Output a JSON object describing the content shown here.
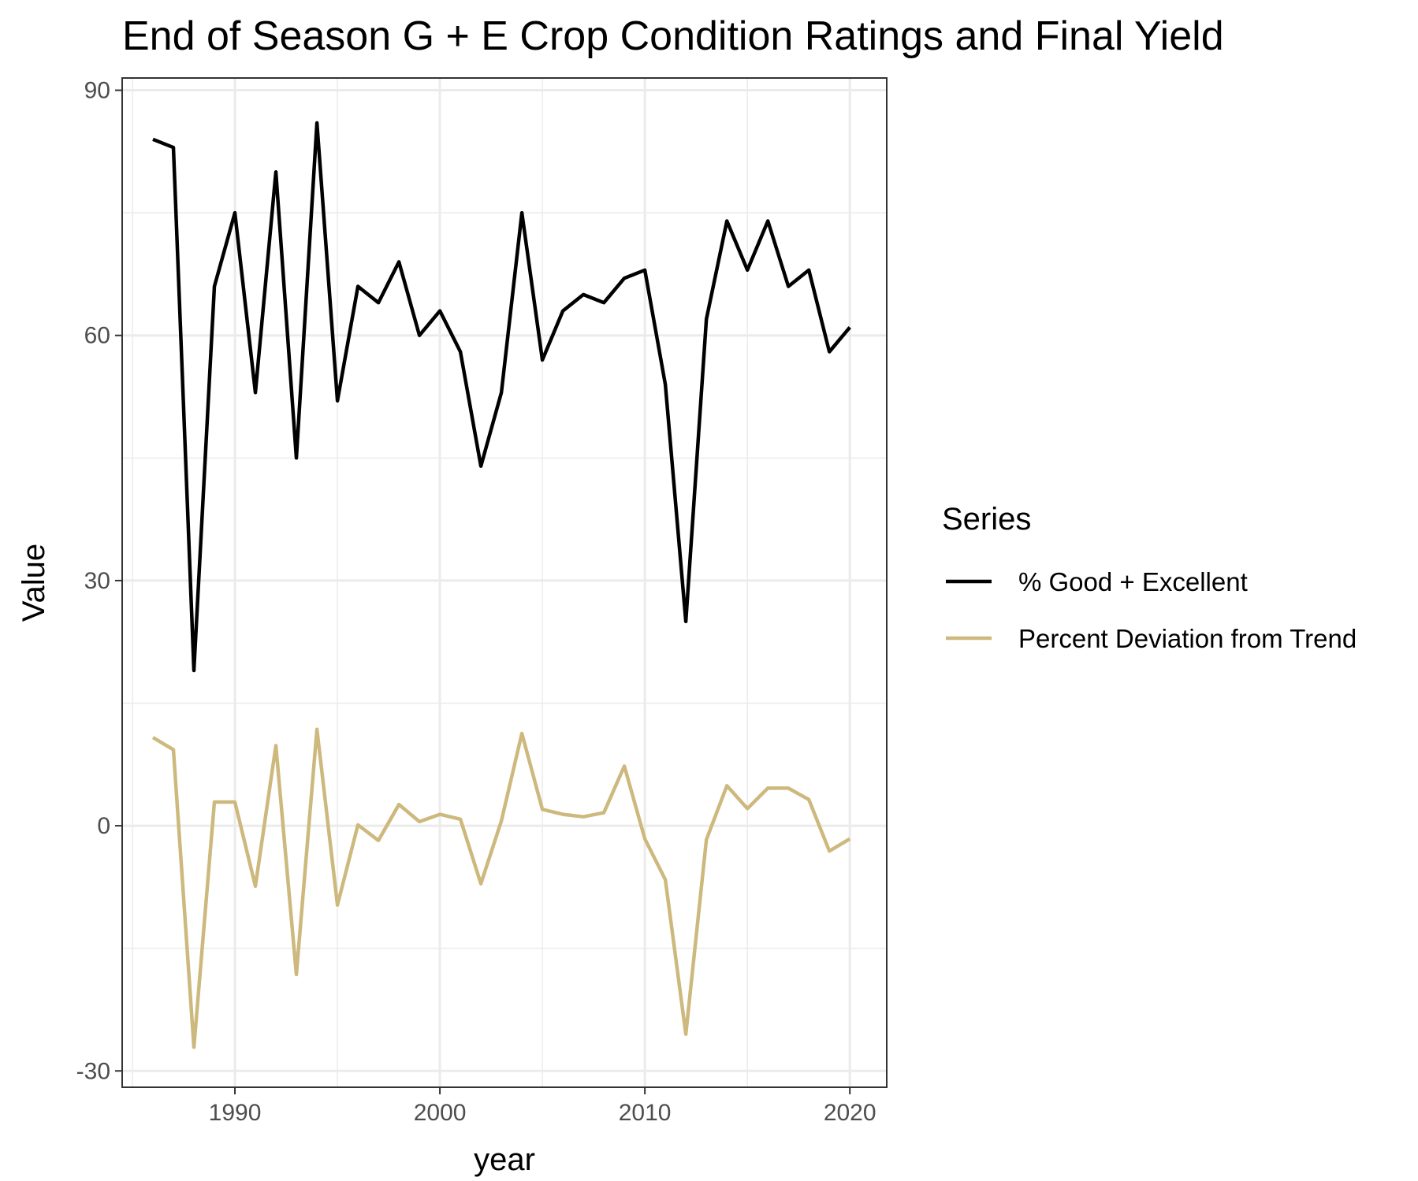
{
  "chart_data": {
    "type": "line",
    "title": "End of Season G + E Crop Condition Ratings and Final Yield",
    "xlabel": "year",
    "ylabel": "Value",
    "xlim": [
      1984.5,
      2021.8
    ],
    "ylim": [
      -32,
      91.5
    ],
    "x_ticks": [
      1990,
      2000,
      2010,
      2020
    ],
    "y_ticks": [
      -30,
      0,
      30,
      60,
      90
    ],
    "grid": true,
    "legend_title": "Series",
    "legend_position": "right",
    "x": [
      1986,
      1987,
      1988,
      1989,
      1990,
      1991,
      1992,
      1993,
      1994,
      1995,
      1996,
      1997,
      1998,
      1999,
      2000,
      2001,
      2002,
      2003,
      2004,
      2005,
      2006,
      2007,
      2008,
      2009,
      2010,
      2011,
      2012,
      2013,
      2014,
      2015,
      2016,
      2017,
      2018,
      2019,
      2020
    ],
    "series": [
      {
        "name": "% Good + Excellent",
        "color": "#000000",
        "values": [
          84,
          83,
          19,
          66,
          75,
          53,
          80,
          45,
          86,
          52,
          66,
          64,
          69,
          60,
          63,
          58,
          44,
          53,
          75,
          57,
          63,
          65,
          64,
          67,
          68,
          54,
          25,
          62,
          74,
          68,
          74,
          66,
          68,
          58,
          61
        ]
      },
      {
        "name": "Percent Deviation from Trend",
        "color": "#cdb97d",
        "values": [
          10.8,
          9.3,
          -27.1,
          2.9,
          2.9,
          -7.4,
          9.8,
          -18.2,
          11.8,
          -9.7,
          0.1,
          -1.8,
          2.6,
          0.5,
          1.4,
          0.8,
          -7.1,
          0.6,
          11.3,
          2.0,
          1.4,
          1.1,
          1.6,
          7.3,
          -1.6,
          -6.6,
          -25.5,
          -1.7,
          4.9,
          2.1,
          4.6,
          4.6,
          3.2,
          -3.1,
          -1.6
        ]
      }
    ]
  }
}
